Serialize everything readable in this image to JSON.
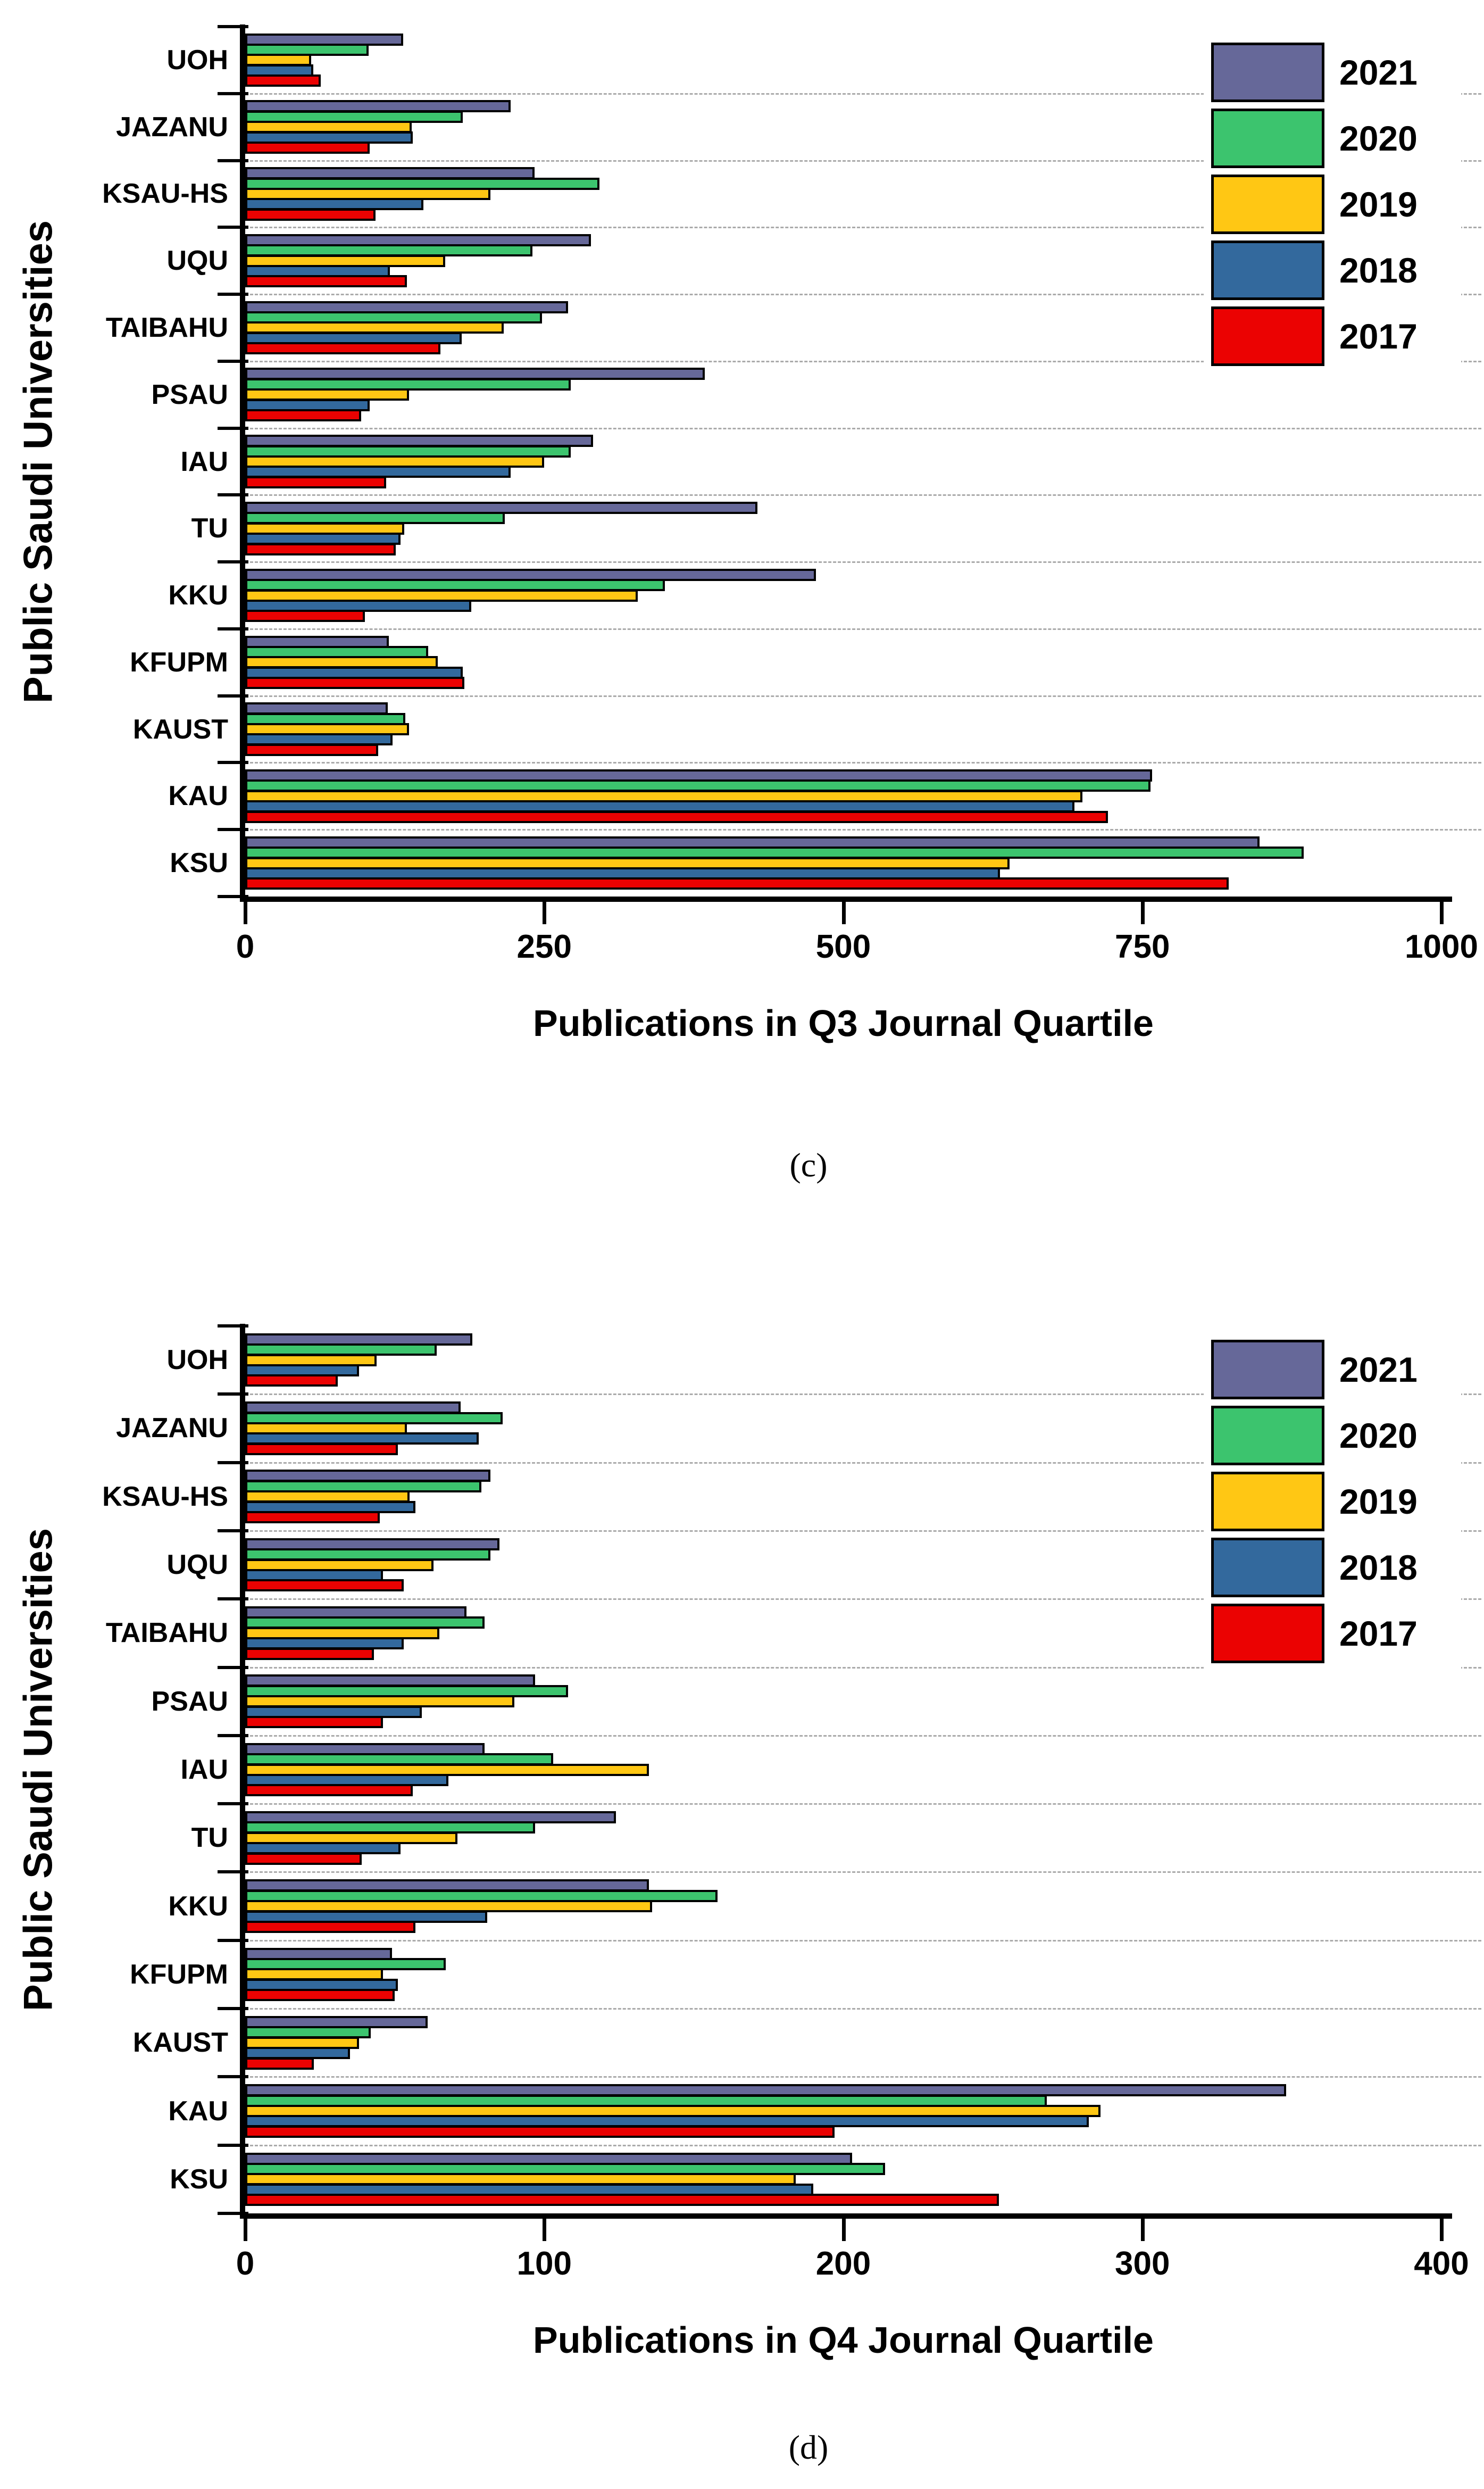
{
  "figure": {
    "y_axis_title": "Public Saudi Universities",
    "series_outline_color": "#000000",
    "grid_color": "#ababab",
    "background_color": "#ffffff",
    "legend_years": [
      "2021",
      "2020",
      "2019",
      "2018",
      "2017"
    ],
    "panel_labels": [
      "(c)",
      "(d)"
    ]
  },
  "chart_data": [
    {
      "type": "bar",
      "orientation": "horizontal",
      "panel_label": "(c)",
      "xlabel": "Publications in Q3 Journal Quartile",
      "ylabel": "Public Saudi Universities",
      "xlim": [
        0,
        1000
      ],
      "xticks": [
        0,
        250,
        500,
        750,
        1000
      ],
      "grid": "dashed horizontal separators between category groups",
      "legend_position": "top-right",
      "categories": [
        "UOH",
        "JAZANU",
        "KSAU-HS",
        "UQU",
        "TAIBAHU",
        "PSAU",
        "IAU",
        "TU",
        "KKU",
        "KFUPM",
        "KAUST",
        "KAU",
        "KSU"
      ],
      "series": [
        {
          "name": "2021",
          "color": "#666899",
          "values": [
            132,
            222,
            242,
            289,
            270,
            384,
            291,
            428,
            477,
            120,
            119,
            758,
            848
          ]
        },
        {
          "name": "2020",
          "color": "#3CC46E",
          "values": [
            103,
            182,
            296,
            240,
            248,
            272,
            272,
            217,
            351,
            153,
            134,
            757,
            885
          ]
        },
        {
          "name": "2019",
          "color": "#FFC714",
          "values": [
            55,
            139,
            205,
            167,
            216,
            137,
            250,
            133,
            328,
            161,
            137,
            700,
            639
          ]
        },
        {
          "name": "2018",
          "color": "#33699D",
          "values": [
            57,
            140,
            149,
            121,
            181,
            104,
            222,
            130,
            189,
            182,
            123,
            693,
            631
          ]
        },
        {
          "name": "2017",
          "color": "#EB0202",
          "values": [
            63,
            104,
            109,
            135,
            163,
            97,
            118,
            126,
            100,
            183,
            111,
            721,
            822
          ]
        }
      ]
    },
    {
      "type": "bar",
      "orientation": "horizontal",
      "panel_label": "(d)",
      "xlabel": "Publications in Q4 Journal Quartile",
      "ylabel": "Public Saudi Universities",
      "xlim": [
        0,
        400
      ],
      "xticks": [
        0,
        100,
        200,
        300,
        400
      ],
      "grid": "dashed horizontal separators between category groups",
      "legend_position": "top-right",
      "categories": [
        "UOH",
        "JAZANU",
        "KSAU-HS",
        "UQU",
        "TAIBAHU",
        "PSAU",
        "IAU",
        "TU",
        "KKU",
        "KFUPM",
        "KAUST",
        "KAU",
        "KSU"
      ],
      "series": [
        {
          "name": "2021",
          "color": "#666899",
          "values": [
            76,
            72,
            82,
            85,
            74,
            97,
            80,
            124,
            135,
            49,
            61,
            348,
            203
          ]
        },
        {
          "name": "2020",
          "color": "#3CC46E",
          "values": [
            64,
            86,
            79,
            82,
            80,
            108,
            103,
            97,
            158,
            67,
            42,
            268,
            214
          ]
        },
        {
          "name": "2019",
          "color": "#FFC714",
          "values": [
            44,
            54,
            55,
            63,
            65,
            90,
            135,
            71,
            136,
            46,
            38,
            286,
            184
          ]
        },
        {
          "name": "2018",
          "color": "#33699D",
          "values": [
            38,
            78,
            57,
            46,
            53,
            59,
            68,
            52,
            81,
            51,
            35,
            282,
            190
          ]
        },
        {
          "name": "2017",
          "color": "#EB0202",
          "values": [
            31,
            51,
            45,
            53,
            43,
            46,
            56,
            39,
            57,
            50,
            23,
            197,
            252
          ]
        }
      ]
    }
  ]
}
